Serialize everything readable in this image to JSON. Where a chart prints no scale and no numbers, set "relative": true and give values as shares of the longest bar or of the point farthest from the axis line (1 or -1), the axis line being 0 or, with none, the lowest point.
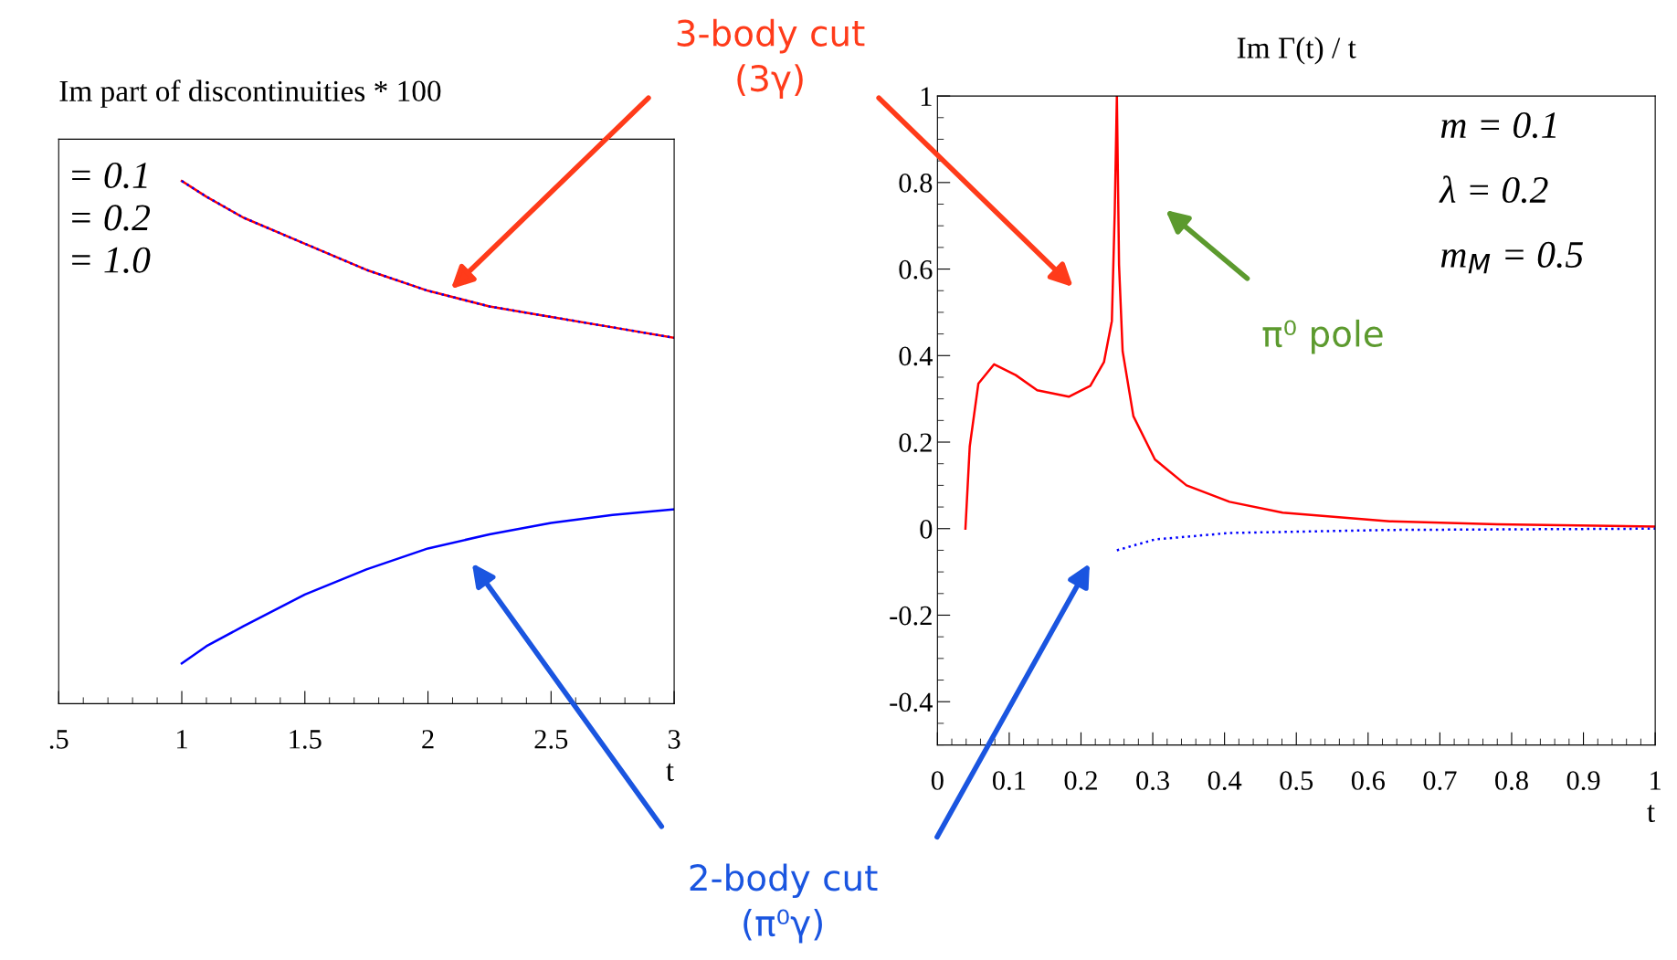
{
  "chart_data": [
    {
      "type": "line",
      "title": "Im part of discontinuities * 100",
      "xlabel": "t",
      "relative": true,
      "xlim": [
        0.5,
        3
      ],
      "xticks": [
        {
          "value": 0.5,
          "label": ".5"
        },
        1,
        1.5,
        2,
        2.5,
        3
      ],
      "series": [
        {
          "color": "#ff0000",
          "line_style": "solid",
          "x": [
            1,
            1.1,
            1.25,
            1.5,
            1.75,
            2,
            2.25,
            2.5,
            2.75,
            3
          ],
          "values": [
            1.0,
            0.97,
            0.93,
            0.88,
            0.83,
            0.79,
            0.76,
            0.74,
            0.72,
            0.7
          ]
        },
        {
          "color": "#0000ff",
          "line_style": "dotted",
          "x": [
            1,
            1.1,
            1.25,
            1.5,
            1.75,
            2,
            2.25,
            2.5,
            2.75,
            3
          ],
          "values": [
            1.0,
            0.97,
            0.93,
            0.88,
            0.83,
            0.79,
            0.76,
            0.74,
            0.72,
            0.7
          ]
        },
        {
          "color": "#0000ff",
          "line_style": "solid",
          "x": [
            1,
            1.1,
            1.25,
            1.5,
            1.75,
            2,
            2.25,
            2.5,
            2.75,
            3
          ],
          "values": [
            0.077,
            0.11,
            0.148,
            0.209,
            0.257,
            0.297,
            0.324,
            0.346,
            0.361,
            0.372
          ]
        }
      ],
      "annotations": [
        "= 0.1",
        "= 0.2",
        "= 1.0",
        "3-body cut\n(3γ)",
        "2-body cut\n(π⁰γ)"
      ],
      "grid": false,
      "legend": false
    },
    {
      "type": "line",
      "title": "Im Γ(t) / t",
      "xlabel": "t",
      "xlim": [
        0,
        1
      ],
      "ylim": [
        -0.5,
        1
      ],
      "xticks": [
        0,
        0.1,
        0.2,
        0.3,
        0.4,
        0.5,
        0.6,
        0.7,
        0.8,
        0.9,
        1
      ],
      "yticks": [
        -0.4,
        -0.2,
        0,
        0.2,
        0.4,
        0.6,
        0.8,
        1
      ],
      "series": [
        {
          "color": "#ff0000",
          "line_style": "solid",
          "x": [
            0.039,
            0.045,
            0.057,
            0.079,
            0.109,
            0.139,
            0.183,
            0.213,
            0.232,
            0.243,
            0.247,
            0.25,
            0.253,
            0.258,
            0.273,
            0.303,
            0.347,
            0.407,
            0.481,
            0.63,
            0.78,
            1.0
          ],
          "values": [
            0,
            0.19,
            0.335,
            0.38,
            0.355,
            0.32,
            0.305,
            0.33,
            0.385,
            0.48,
            0.73,
            1.0,
            0.61,
            0.41,
            0.26,
            0.16,
            0.1,
            0.062,
            0.037,
            0.017,
            0.01,
            0.005
          ]
        },
        {
          "color": "#0000ff",
          "line_style": "dotted",
          "x": [
            0.25,
            0.303,
            0.407,
            0.63,
            1.0
          ],
          "values": [
            -0.05,
            -0.025,
            -0.01,
            -0.003,
            0
          ]
        }
      ],
      "annotations": [
        "m = 0.1",
        "λ = 0.2",
        "m$_{M}$ = 0.5",
        "π⁰ pole"
      ],
      "grid": false,
      "legend": false
    }
  ]
}
